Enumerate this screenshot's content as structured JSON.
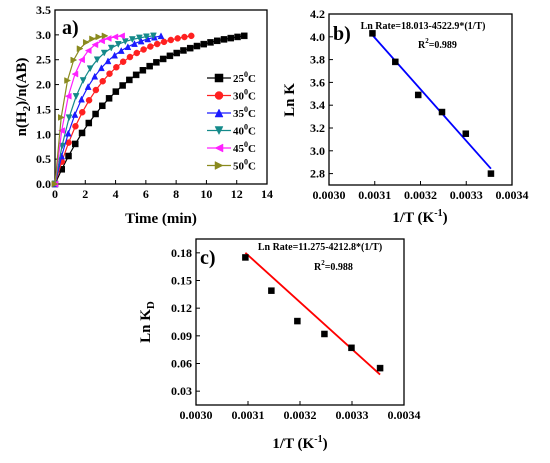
{
  "chart_data": [
    {
      "panel": "a)",
      "type": "line",
      "xlabel": "Time (min)",
      "ylabel": "n(H2)/n(AB)",
      "ylabel_parts": {
        "main": "n(H",
        "sub": "2",
        "tail": ")/n(AB)"
      },
      "xlim": [
        0,
        14
      ],
      "ylim": [
        0,
        3.5
      ],
      "xticks": [
        0,
        2,
        4,
        6,
        8,
        10,
        12,
        14
      ],
      "yticks": [
        0.0,
        0.5,
        1.0,
        1.5,
        2.0,
        2.5,
        3.0,
        3.5
      ],
      "ytick_labels": [
        "0.0",
        "0.5",
        "1.0",
        "1.5",
        "2.0",
        "2.5",
        "3.0",
        "3.5"
      ],
      "legend_placement": "right",
      "series": [
        {
          "name": "25",
          "unit": "C",
          "sup": "0",
          "color": "#000000",
          "marker": "square",
          "end": 12.5,
          "tau": 4.6
        },
        {
          "name": "30",
          "unit": "C",
          "sup": "0",
          "color": "#ff2020",
          "marker": "circle",
          "end": 9.0,
          "tau": 2.9
        },
        {
          "name": "35",
          "unit": "C",
          "sup": "0",
          "color": "#1a1aff",
          "marker": "triangle-up",
          "end": 7.0,
          "tau": 2.2
        },
        {
          "name": "40",
          "unit": "C",
          "sup": "0",
          "color": "#148a8a",
          "marker": "triangle-down",
          "end": 6.5,
          "tau": 1.6
        },
        {
          "name": "45",
          "unit": "C",
          "sup": "0",
          "color": "#ff20ff",
          "marker": "triangle-left",
          "end": 4.4,
          "tau": 1.0
        },
        {
          "name": "50",
          "unit": "C",
          "sup": "0",
          "color": "#8a8a1e",
          "marker": "triangle-right",
          "end": 3.3,
          "tau": 0.7
        }
      ]
    },
    {
      "panel": "b)",
      "type": "scatter",
      "xlabel": "1/T (K",
      "xlabel_sup": "-1",
      "xlabel_tail": ")",
      "ylabel": "Ln K",
      "xlim": [
        0.003,
        0.0034
      ],
      "ylim": [
        2.7,
        4.2
      ],
      "xticks": [
        0.003,
        0.0031,
        0.0032,
        0.0033,
        0.0034
      ],
      "xtick_labels": [
        "0.0030",
        "0.0031",
        "0.0032",
        "0.0033",
        "0.0034"
      ],
      "yticks": [
        2.8,
        3.0,
        3.2,
        3.4,
        3.6,
        3.8,
        4.0,
        4.2
      ],
      "ytick_labels": [
        "2.8",
        "3.0",
        "3.2",
        "3.4",
        "3.6",
        "3.8",
        "4.0",
        "4.2"
      ],
      "equation": "Ln Rate=18.013-4522.9*(1/T)",
      "r2_label": "R",
      "r2_sup": "2",
      "r2_value": "=0.989",
      "fit": {
        "slope": -4522.9,
        "intercept": 18.013,
        "color": "#0000ff"
      },
      "points": [
        {
          "x": 0.003095,
          "y": 4.03
        },
        {
          "x": 0.003145,
          "y": 3.78
        },
        {
          "x": 0.003195,
          "y": 3.49
        },
        {
          "x": 0.003247,
          "y": 3.34
        },
        {
          "x": 0.003299,
          "y": 3.15
        },
        {
          "x": 0.003354,
          "y": 2.8
        }
      ]
    },
    {
      "panel": "c)",
      "type": "scatter",
      "xlabel": "1/T (K",
      "xlabel_sup": "-1",
      "xlabel_tail": ")",
      "ylabel": "Ln K",
      "ylabel_sub": "D",
      "xlim": [
        0.003,
        0.0034
      ],
      "ylim": [
        0.015,
        0.195
      ],
      "xticks": [
        0.003,
        0.0031,
        0.0032,
        0.0033,
        0.0034
      ],
      "xtick_labels": [
        "0.0030",
        "0.0031",
        "0.0032",
        "0.0033",
        "0.0034"
      ],
      "yticks": [
        0.03,
        0.06,
        0.09,
        0.12,
        0.15,
        0.18
      ],
      "ytick_labels": [
        "0.03",
        "0.06",
        "0.09",
        "0.12",
        "0.15",
        "0.18"
      ],
      "equation": "Ln Rate=11.275-4212.8*(1/T)",
      "r2_label": "R",
      "r2_sup": "2",
      "r2_value": "=0.988",
      "fit": {
        "x0": 0.003095,
        "y0": 0.18,
        "x1": 0.003354,
        "y1": 0.048,
        "color": "#ff0000"
      },
      "points": [
        {
          "x": 0.003095,
          "y": 0.175
        },
        {
          "x": 0.003145,
          "y": 0.139
        },
        {
          "x": 0.003195,
          "y": 0.106
        },
        {
          "x": 0.003247,
          "y": 0.092
        },
        {
          "x": 0.003299,
          "y": 0.077
        },
        {
          "x": 0.003354,
          "y": 0.055
        }
      ]
    }
  ]
}
